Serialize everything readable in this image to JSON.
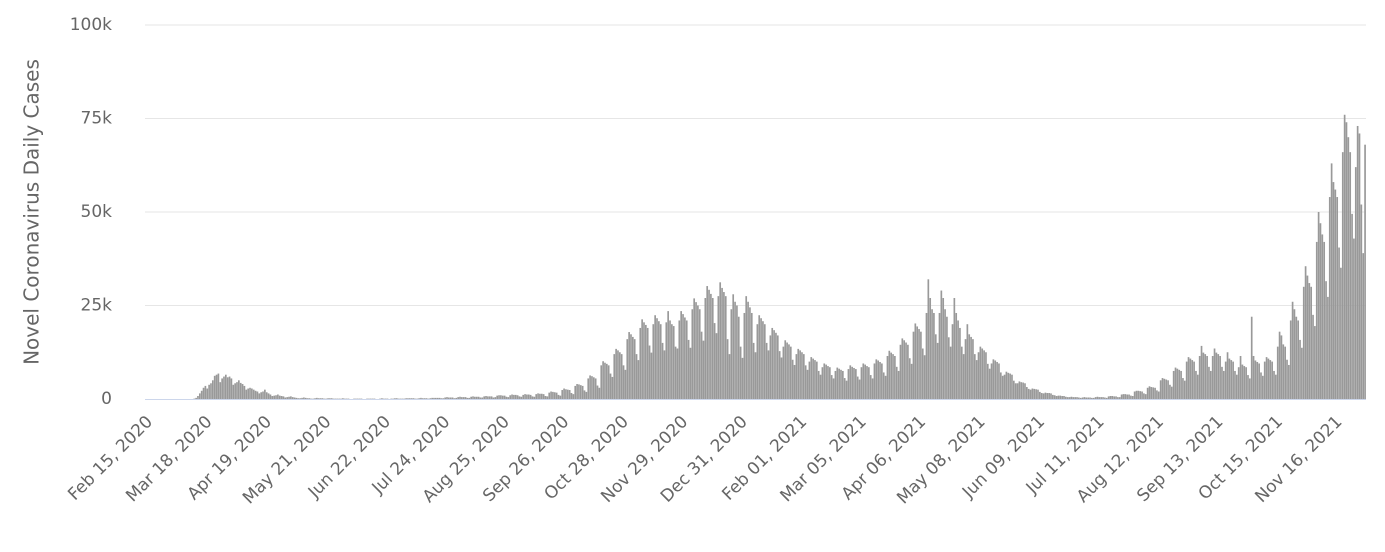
{
  "chart_data": {
    "type": "bar",
    "y_axis_label": "Novel Coronavirus Daily Cases",
    "color": "#999999",
    "grid": true,
    "ylim": [
      0,
      100000
    ],
    "yticks": [
      0,
      {
        "value": 25000,
        "label": "25k"
      },
      {
        "value": 50000,
        "label": "50k"
      },
      {
        "value": 75000,
        "label": "75k"
      },
      {
        "value": 100000,
        "label": "100k"
      }
    ],
    "categories": [
      "Feb 15, 2020",
      null,
      null,
      null,
      null,
      null,
      null,
      null,
      null,
      null,
      null,
      null,
      null,
      null,
      null,
      null,
      null,
      null,
      null,
      null,
      null,
      null,
      null,
      null,
      null,
      null,
      null,
      null,
      null,
      null,
      null,
      null,
      "Mar 18, 2020",
      null,
      null,
      null,
      null,
      null,
      null,
      null,
      null,
      null,
      null,
      null,
      null,
      null,
      null,
      null,
      null,
      null,
      null,
      null,
      null,
      null,
      null,
      null,
      null,
      null,
      null,
      null,
      null,
      null,
      null,
      null,
      "Apr 19, 2020",
      null,
      null,
      null,
      null,
      null,
      null,
      null,
      null,
      null,
      null,
      null,
      null,
      null,
      null,
      null,
      null,
      null,
      null,
      null,
      null,
      null,
      null,
      null,
      null,
      null,
      null,
      null,
      null,
      null,
      null,
      null,
      "May 21, 2020",
      null,
      null,
      null,
      null,
      null,
      null,
      null,
      null,
      null,
      null,
      null,
      null,
      null,
      null,
      null,
      null,
      null,
      null,
      null,
      null,
      null,
      null,
      null,
      null,
      null,
      null,
      null,
      null,
      null,
      null,
      null,
      "Jun 22, 2020",
      null,
      null,
      null,
      null,
      null,
      null,
      null,
      null,
      null,
      null,
      null,
      null,
      null,
      null,
      null,
      null,
      null,
      null,
      null,
      null,
      null,
      null,
      null,
      null,
      null,
      null,
      null,
      null,
      null,
      null,
      null,
      "Jul 24, 2020",
      null,
      null,
      null,
      null,
      null,
      null,
      null,
      null,
      null,
      null,
      null,
      null,
      null,
      null,
      null,
      null,
      null,
      null,
      null,
      null,
      null,
      null,
      null,
      null,
      null,
      null,
      null,
      null,
      null,
      null,
      null,
      "Aug 25, 2020",
      null,
      null,
      null,
      null,
      null,
      null,
      null,
      null,
      null,
      null,
      null,
      null,
      null,
      null,
      null,
      null,
      null,
      null,
      null,
      null,
      null,
      null,
      null,
      null,
      null,
      null,
      null,
      null,
      null,
      null,
      null,
      "Sep 26, 2020",
      null,
      null,
      null,
      null,
      null,
      null,
      null,
      null,
      null,
      null,
      null,
      null,
      null,
      null,
      null,
      null,
      null,
      null,
      null,
      null,
      null,
      null,
      null,
      null,
      null,
      null,
      null,
      null,
      null,
      null,
      null,
      "Oct 28, 2020",
      null,
      null,
      null,
      null,
      null,
      null,
      null,
      null,
      null,
      null,
      null,
      null,
      null,
      null,
      null,
      null,
      null,
      null,
      null,
      null,
      null,
      null,
      null,
      null,
      null,
      null,
      null,
      null,
      null,
      null,
      null,
      "Nov 29, 2020",
      null,
      null,
      null,
      null,
      null,
      null,
      null,
      null,
      null,
      null,
      null,
      null,
      null,
      null,
      null,
      null,
      null,
      null,
      null,
      null,
      null,
      null,
      null,
      null,
      null,
      null,
      null,
      null,
      null,
      null,
      null,
      "Dec 31, 2020",
      null,
      null,
      null,
      null,
      null,
      null,
      null,
      null,
      null,
      null,
      null,
      null,
      null,
      null,
      null,
      null,
      null,
      null,
      null,
      null,
      null,
      null,
      null,
      null,
      null,
      null,
      null,
      null,
      null,
      null,
      null,
      "Feb 01, 2021",
      null,
      null,
      null,
      null,
      null,
      null,
      null,
      null,
      null,
      null,
      null,
      null,
      null,
      null,
      null,
      null,
      null,
      null,
      null,
      null,
      null,
      null,
      null,
      null,
      null,
      null,
      null,
      null,
      null,
      null,
      null,
      "Mar 05, 2021",
      null,
      null,
      null,
      null,
      null,
      null,
      null,
      null,
      null,
      null,
      null,
      null,
      null,
      null,
      null,
      null,
      null,
      null,
      null,
      null,
      null,
      null,
      null,
      null,
      null,
      null,
      null,
      null,
      null,
      null,
      null,
      "Apr 06, 2021",
      null,
      null,
      null,
      null,
      null,
      null,
      null,
      null,
      null,
      null,
      null,
      null,
      null,
      null,
      null,
      null,
      null,
      null,
      null,
      null,
      null,
      null,
      null,
      null,
      null,
      null,
      null,
      null,
      null,
      null,
      null,
      "May 08, 2021",
      null,
      null,
      null,
      null,
      null,
      null,
      null,
      null,
      null,
      null,
      null,
      null,
      null,
      null,
      null,
      null,
      null,
      null,
      null,
      null,
      null,
      null,
      null,
      null,
      null,
      null,
      null,
      null,
      null,
      null,
      null,
      "Jun 09, 2021",
      null,
      null,
      null,
      null,
      null,
      null,
      null,
      null,
      null,
      null,
      null,
      null,
      null,
      null,
      null,
      null,
      null,
      null,
      null,
      null,
      null,
      null,
      null,
      null,
      null,
      null,
      null,
      null,
      null,
      null,
      null,
      "Jul 11, 2021",
      null,
      null,
      null,
      null,
      null,
      null,
      null,
      null,
      null,
      null,
      null,
      null,
      null,
      null,
      null,
      null,
      null,
      null,
      null,
      null,
      null,
      null,
      null,
      null,
      null,
      null,
      null,
      null,
      null,
      null,
      null,
      "Aug 12, 2021",
      null,
      null,
      null,
      null,
      null,
      null,
      null,
      null,
      null,
      null,
      null,
      null,
      null,
      null,
      null,
      null,
      null,
      null,
      null,
      null,
      null,
      null,
      null,
      null,
      null,
      null,
      null,
      null,
      null,
      null,
      null,
      "Sep 13, 2021",
      null,
      null,
      null,
      null,
      null,
      null,
      null,
      null,
      null,
      null,
      null,
      null,
      null,
      null,
      null,
      null,
      null,
      null,
      null,
      null,
      null,
      null,
      null,
      null,
      null,
      null,
      null,
      null,
      null,
      null,
      null,
      "Oct 15, 2021",
      null,
      null,
      null,
      null,
      null,
      null,
      null,
      null,
      null,
      null,
      null,
      null,
      null,
      null,
      null,
      null,
      null,
      null,
      null,
      null,
      null,
      null,
      null,
      null,
      null,
      null,
      null,
      null,
      null,
      null,
      null,
      "Nov 16, 2021",
      null,
      null,
      null,
      null,
      null,
      null,
      null,
      null,
      null,
      null,
      null,
      null,
      null,
      null,
      null,
      null
    ],
    "values": [
      0,
      0,
      0,
      0,
      0,
      0,
      0,
      0,
      0,
      0,
      0,
      0,
      0,
      0,
      0,
      0,
      0,
      0,
      0,
      0,
      0,
      0,
      0,
      0,
      0,
      0,
      100,
      300,
      800,
      1500,
      2200,
      3000,
      3500,
      2800,
      3800,
      4200,
      5000,
      6200,
      6500,
      6800,
      4500,
      5500,
      6000,
      6500,
      5800,
      6000,
      5500,
      3800,
      4200,
      4500,
      5000,
      4300,
      4000,
      3500,
      2500,
      2800,
      3000,
      2800,
      2500,
      2200,
      2000,
      1500,
      1800,
      2000,
      2500,
      1800,
      1500,
      1200,
      800,
      900,
      1000,
      1200,
      900,
      800,
      700,
      400,
      500,
      600,
      700,
      500,
      400,
      300,
      200,
      200,
      300,
      400,
      300,
      200,
      200,
      100,
      100,
      200,
      300,
      200,
      200,
      200,
      100,
      100,
      200,
      200,
      200,
      100,
      100,
      100,
      100,
      100,
      200,
      100,
      100,
      100,
      0,
      0,
      100,
      100,
      100,
      100,
      100,
      0,
      0,
      100,
      100,
      100,
      100,
      100,
      0,
      0,
      100,
      200,
      100,
      100,
      100,
      0,
      100,
      100,
      200,
      200,
      100,
      100,
      100,
      100,
      200,
      200,
      200,
      200,
      200,
      100,
      100,
      200,
      300,
      200,
      200,
      200,
      100,
      200,
      300,
      300,
      300,
      300,
      300,
      200,
      200,
      400,
      500,
      400,
      400,
      400,
      200,
      300,
      500,
      600,
      500,
      500,
      500,
      300,
      300,
      600,
      700,
      600,
      600,
      600,
      400,
      400,
      700,
      800,
      700,
      700,
      700,
      400,
      500,
      900,
      1000,
      1000,
      900,
      900,
      600,
      500,
      1000,
      1200,
      1100,
      1100,
      1000,
      700,
      600,
      1100,
      1300,
      1200,
      1200,
      1100,
      700,
      600,
      1300,
      1500,
      1400,
      1400,
      1300,
      800,
      700,
      1700,
      2000,
      1900,
      1800,
      1700,
      1100,
      900,
      2400,
      2800,
      2600,
      2500,
      2400,
      1600,
      1300,
      3500,
      4000,
      3900,
      3700,
      3500,
      2300,
      1900,
      5500,
      6300,
      6100,
      5800,
      5500,
      3600,
      3000,
      9000,
      10100,
      9700,
      9400,
      9000,
      6800,
      5900,
      12000,
      13400,
      13000,
      12500,
      12000,
      9000,
      7800,
      16000,
      17900,
      17300,
      16600,
      16000,
      12000,
      10400,
      19000,
      21300,
      20500,
      19800,
      19000,
      14300,
      12400,
      20000,
      22400,
      21600,
      20800,
      20000,
      15000,
      13000,
      20500,
      23500,
      21000,
      20000,
      19500,
      14000,
      13500,
      21000,
      23500,
      22700,
      21800,
      21000,
      15800,
      13700,
      24000,
      26900,
      25900,
      25000,
      24000,
      18000,
      15600,
      27000,
      30200,
      29200,
      28100,
      27000,
      20300,
      17600,
      27500,
      31200,
      29700,
      28600,
      27500,
      16000,
      12000,
      24000,
      28000,
      26000,
      25000,
      22000,
      14000,
      11000,
      23000,
      27500,
      26000,
      24500,
      23000,
      15000,
      12500,
      20000,
      22400,
      21600,
      20800,
      20000,
      15000,
      13000,
      17000,
      19000,
      18400,
      17700,
      17000,
      12800,
      11100,
      14000,
      15700,
      15100,
      14600,
      14000,
      10500,
      9100,
      12000,
      13400,
      13000,
      12500,
      12000,
      9000,
      7800,
      10000,
      11200,
      10800,
      10400,
      10000,
      7500,
      6500,
      8500,
      9500,
      9200,
      8800,
      8500,
      6400,
      5500,
      7500,
      8400,
      8100,
      7800,
      7500,
      5600,
      4900,
      8000,
      9000,
      8600,
      8300,
      8000,
      6000,
      5200,
      8500,
      9500,
      9200,
      8800,
      8500,
      6400,
      5500,
      9500,
      10600,
      10300,
      9900,
      9500,
      7100,
      6200,
      11500,
      12900,
      12400,
      12000,
      11500,
      8600,
      7500,
      14500,
      16200,
      15700,
      15100,
      14500,
      10900,
      9400,
      18000,
      20200,
      19400,
      18700,
      18000,
      13500,
      11700,
      23000,
      32000,
      27000,
      24000,
      23000,
      17300,
      15000,
      23000,
      29000,
      27000,
      24000,
      22000,
      16500,
      14000,
      20000,
      27000,
      23000,
      21000,
      19000,
      14000,
      12000,
      16000,
      20000,
      17300,
      16600,
      16000,
      12000,
      10400,
      12500,
      14000,
      13500,
      13000,
      12500,
      9400,
      8100,
      9500,
      10600,
      10300,
      9900,
      9500,
      7100,
      6200,
      6500,
      7300,
      7000,
      6800,
      6500,
      4900,
      4200,
      4200,
      4700,
      4500,
      4400,
      4200,
      3200,
      2700,
      2500,
      2800,
      2700,
      2600,
      2500,
      1900,
      1600,
      1500,
      1700,
      1600,
      1600,
      1500,
      1100,
      1000,
      800,
      900,
      900,
      800,
      800,
      600,
      500,
      500,
      600,
      500,
      500,
      500,
      400,
      300,
      400,
      500,
      400,
      400,
      400,
      300,
      300,
      500,
      600,
      500,
      500,
      500,
      400,
      300,
      700,
      800,
      800,
      700,
      700,
      500,
      500,
      1200,
      1300,
      1300,
      1200,
      1200,
      900,
      800,
      2000,
      2200,
      2200,
      2100,
      2000,
      1500,
      1300,
      3000,
      3400,
      3200,
      3100,
      3000,
      2300,
      2000,
      5000,
      5600,
      5400,
      5200,
      5000,
      3800,
      3300,
      7500,
      8400,
      8100,
      7800,
      7500,
      5600,
      4900,
      10000,
      11200,
      10800,
      10400,
      10000,
      7500,
      6500,
      11500,
      14200,
      12400,
      12000,
      11500,
      8600,
      7500,
      11500,
      13500,
      12400,
      12000,
      11500,
      8600,
      7500,
      10000,
      12500,
      10800,
      10400,
      10000,
      7500,
      6500,
      8500,
      11500,
      9200,
      8800,
      8500,
      6400,
      5500,
      22000,
      11500,
      10300,
      9900,
      9500,
      7100,
      6200,
      10000,
      11200,
      10800,
      10400,
      10000,
      7500,
      6500,
      14000,
      18000,
      17000,
      14600,
      14000,
      10500,
      9100,
      21000,
      26000,
      24000,
      22000,
      21000,
      15800,
      13700,
      30000,
      35500,
      33000,
      31000,
      30000,
      22500,
      19500,
      42000,
      50000,
      47000,
      44000,
      42000,
      31500,
      27300,
      54000,
      63000,
      58000,
      56000,
      54000,
      40500,
      35100,
      66000,
      76000,
      74000,
      70000,
      66000,
      49500,
      42900,
      62000,
      73000,
      71000,
      52000,
      39000,
      68000
    ]
  }
}
